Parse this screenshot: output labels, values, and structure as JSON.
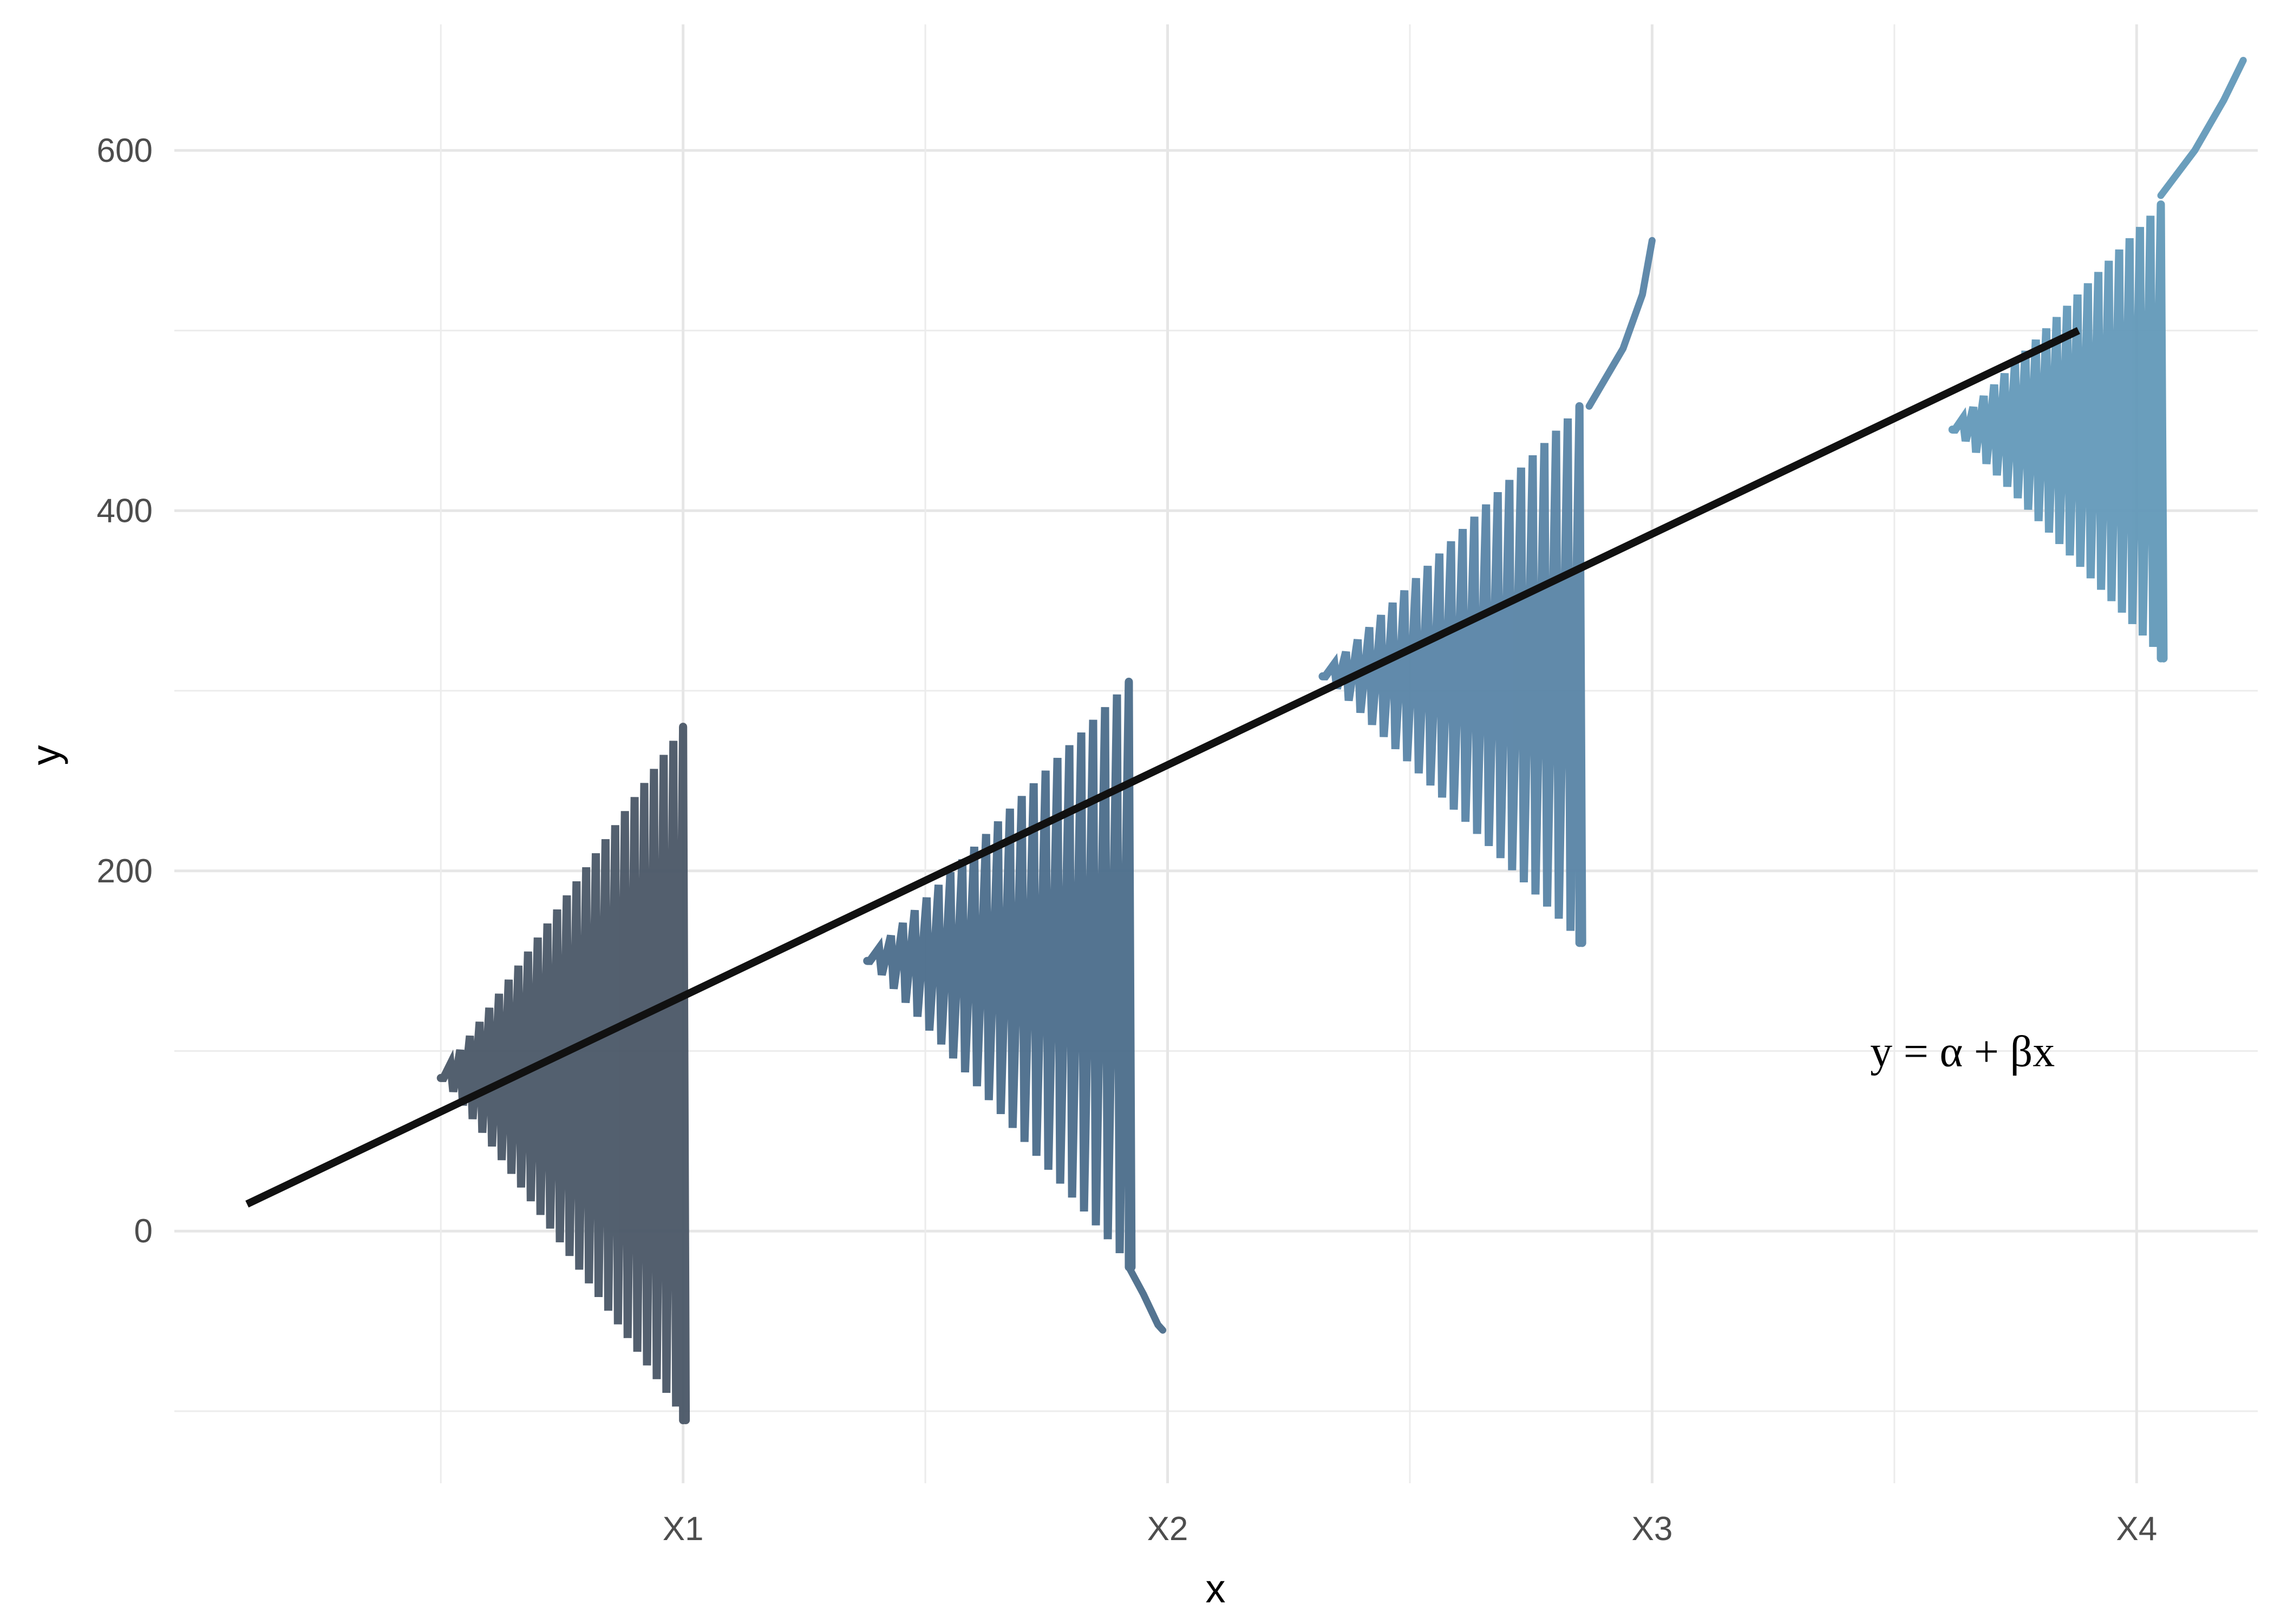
{
  "chart_data": {
    "type": "line",
    "title": "",
    "xlabel": "x",
    "ylabel": "y",
    "x_categories": [
      "X1",
      "X2",
      "X3",
      "X4"
    ],
    "x_category_positions": [
      1,
      2,
      3,
      4
    ],
    "xlim": [
      -0.05,
      4.25
    ],
    "ylim": [
      -140,
      670
    ],
    "y_ticks": [
      0,
      200,
      400,
      600
    ],
    "grid": true,
    "regression_line": {
      "label": "y = α + βx",
      "x": [
        0.1,
        3.88
      ],
      "y": [
        15,
        500
      ],
      "color": "#111111"
    },
    "annotation": {
      "text": "y = α + βx",
      "x": 3.45,
      "y": 100
    },
    "distributions": [
      {
        "name": "X1",
        "x_base": 1.0,
        "mean": 85,
        "sd": 65,
        "peak_width": 0.5,
        "y_lo": -105,
        "y_hi": 280,
        "n_lines": 25,
        "color": "#4a5767"
      },
      {
        "name": "X2",
        "x_base": 1.92,
        "mean": 150,
        "sd": 55,
        "peak_width": 0.54,
        "y_lo": -20,
        "y_hi": 305,
        "n_lines": 22,
        "color": "#4b6d8b",
        "tail": [
          [
            1.92,
            -20
          ],
          [
            1.95,
            -35
          ],
          [
            1.98,
            -52
          ],
          [
            1.99,
            -55
          ]
        ]
      },
      {
        "name": "X3",
        "x_base": 2.85,
        "mean": 308,
        "sd": 50,
        "peak_width": 0.53,
        "y_lo": 160,
        "y_hi": 458,
        "n_lines": 22,
        "color": "#5984a6",
        "tail": [
          [
            2.87,
            458
          ],
          [
            2.94,
            490
          ],
          [
            2.98,
            520
          ],
          [
            3.0,
            550
          ]
        ]
      },
      {
        "name": "X4",
        "x_base": 4.05,
        "mean": 445,
        "sd": 42,
        "peak_width": 0.43,
        "y_lo": 318,
        "y_hi": 570,
        "n_lines": 20,
        "color": "#6399b9",
        "tail": [
          [
            4.05,
            575
          ],
          [
            4.12,
            600
          ],
          [
            4.18,
            628
          ],
          [
            4.22,
            650
          ]
        ]
      }
    ]
  }
}
